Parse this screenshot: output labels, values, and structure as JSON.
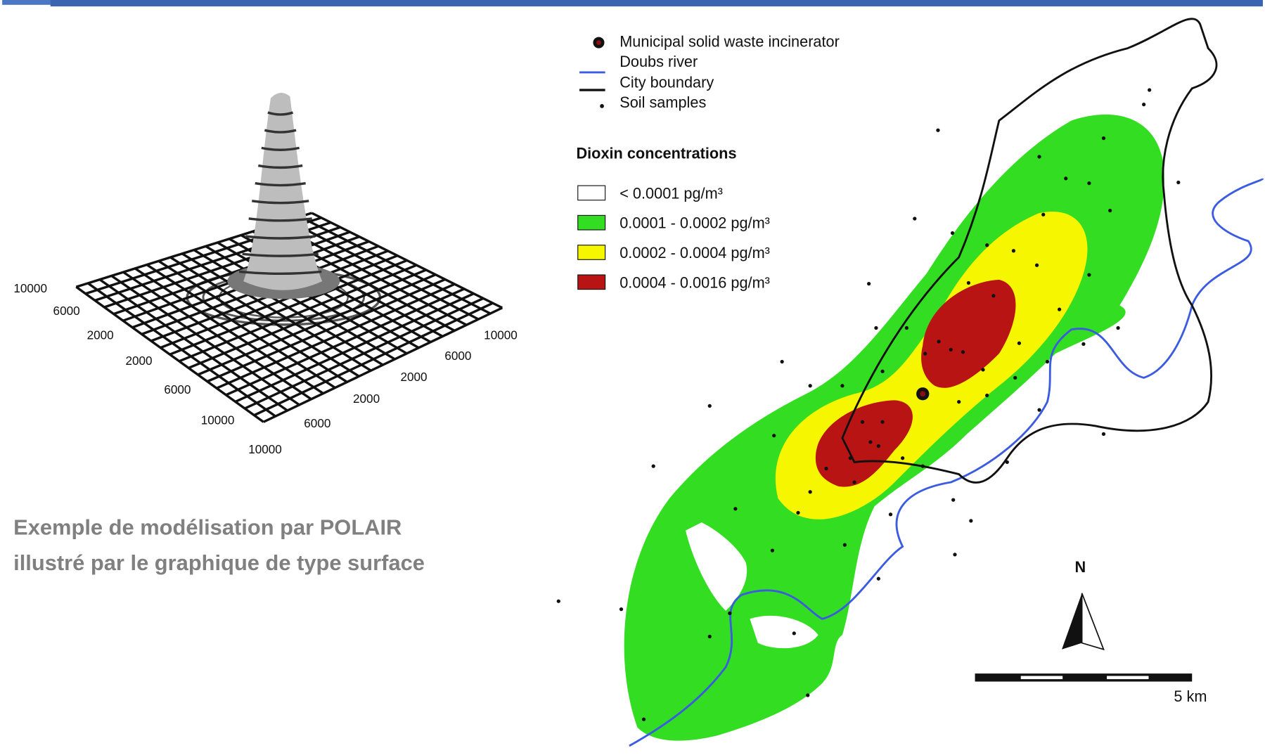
{
  "surface_plot": {
    "axis_left_labels": [
      "10000",
      "6000",
      "2000",
      "2000",
      "6000",
      "10000"
    ],
    "axis_right_labels": [
      "10000",
      "6000",
      "2000",
      "2000",
      "6000",
      "10000"
    ]
  },
  "caption": {
    "line1": "Exemple de modélisation par POLAIR",
    "line2": "illustré  par le graphique de type surface"
  },
  "map": {
    "legend": {
      "incinerator": "Municipal solid waste incinerator",
      "river": "Doubs river",
      "boundary": "City boundary",
      "samples": "Soil samples",
      "concentration_title": "Dioxin concentrations",
      "classes": [
        "< 0.0001 pg/m³",
        "0.0001 - 0.0002 pg/m³",
        "0.0002 - 0.0004 pg/m³",
        "0.0004 - 0.0016 pg/m³"
      ]
    },
    "north": "N",
    "scale": "5 km"
  }
}
